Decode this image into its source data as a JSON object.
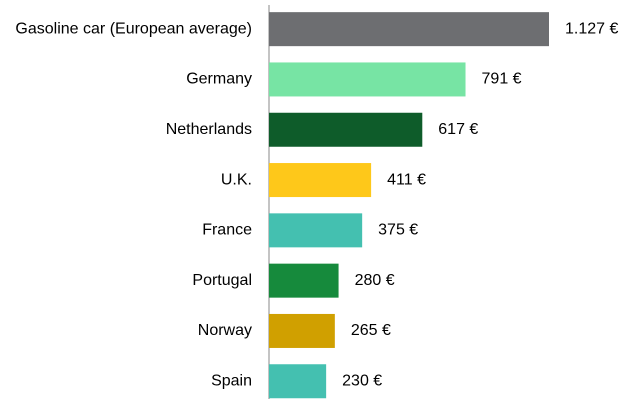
{
  "chart_data": {
    "type": "bar",
    "orientation": "horizontal",
    "categories": [
      "Gasoline car (European average)",
      "Germany",
      "Netherlands",
      "U.K.",
      "France",
      "Portugal",
      "Norway",
      "Spain"
    ],
    "values": [
      1127,
      791,
      617,
      411,
      375,
      280,
      265,
      230
    ],
    "value_labels": [
      "1.127 €",
      "791 €",
      "617 €",
      "411 €",
      "375 €",
      "280 €",
      "265 €",
      "230 €"
    ],
    "colors": [
      "#6d6e71",
      "#77e4a4",
      "#0e5c2a",
      "#fec81a",
      "#44c0b0",
      "#168a3c",
      "#d0a000",
      "#44c0b0"
    ]
  }
}
